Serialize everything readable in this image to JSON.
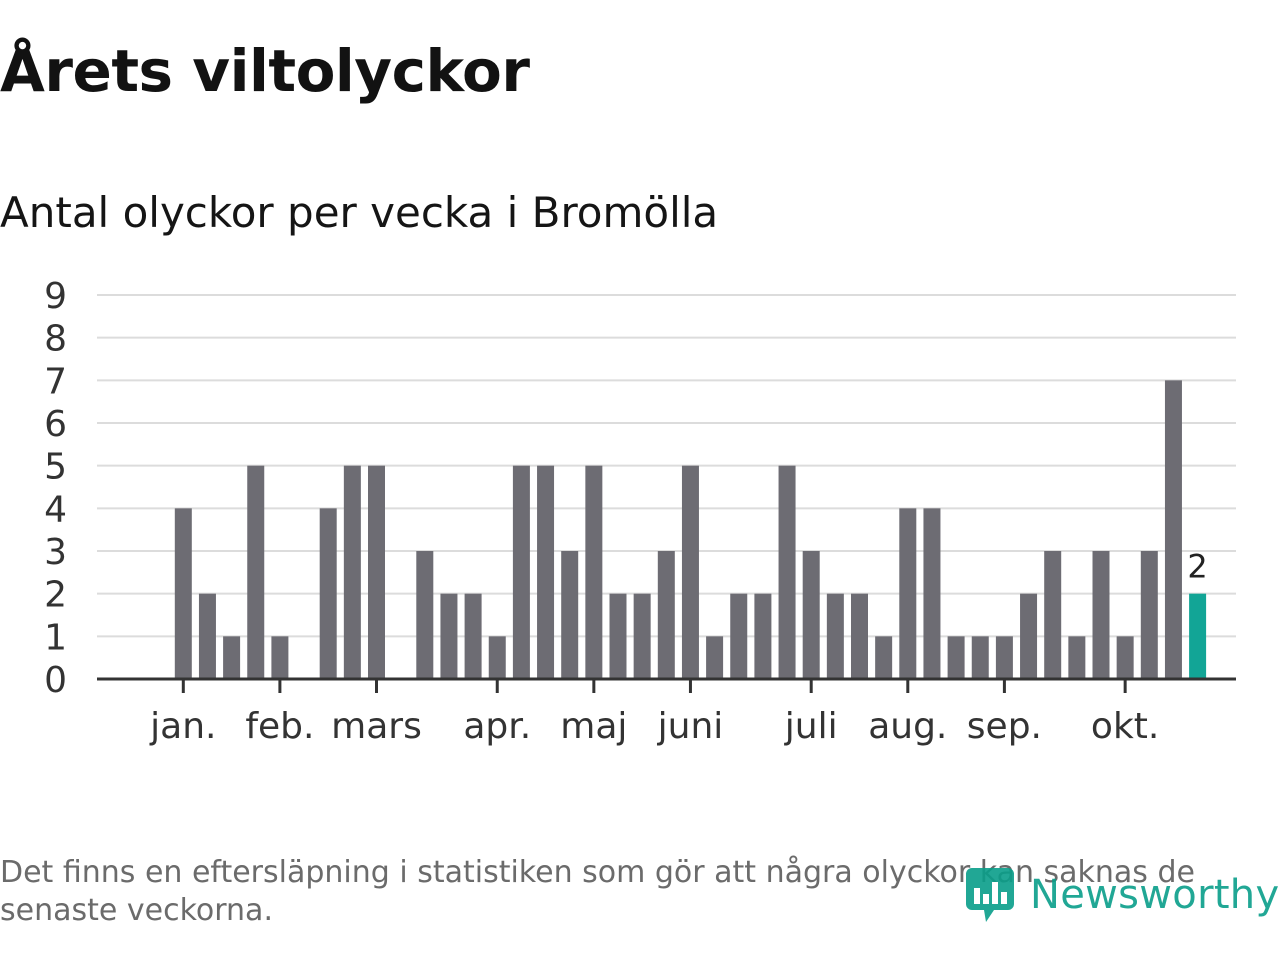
{
  "header": {
    "title": "Årets viltolyckor",
    "subtitle": "Antal olyckor per vecka i Bromölla"
  },
  "footer": {
    "note": "Det finns en eftersläpning i statistiken som gör att några olyckor kan saknas de senaste veckorna.",
    "brand": "Newsworthy"
  },
  "colors": {
    "bar": "#6d6c73",
    "highlight": "#12a596",
    "grid": "#dcdcdc",
    "axis": "#333333",
    "tick_text": "#333333",
    "brand": "#0a9e8a"
  },
  "chart_data": {
    "type": "bar",
    "title": "Antal olyckor per vecka i Bromölla",
    "xlabel": "",
    "ylabel": "",
    "ylim": [
      0,
      9
    ],
    "yticks": [
      0,
      1,
      2,
      3,
      4,
      5,
      6,
      7,
      8,
      9
    ],
    "grid": true,
    "weeks": [
      1,
      2,
      3,
      4,
      5,
      6,
      7,
      8,
      9,
      10,
      11,
      12,
      13,
      14,
      15,
      16,
      17,
      18,
      19,
      20,
      21,
      22,
      23,
      24,
      25,
      26,
      27,
      28,
      29,
      30,
      31,
      32,
      33,
      34,
      35,
      36,
      37,
      38,
      39,
      40,
      41,
      42,
      43,
      44,
      45
    ],
    "values": [
      0,
      0,
      4,
      2,
      1,
      5,
      1,
      0,
      4,
      5,
      5,
      0,
      3,
      2,
      2,
      1,
      5,
      5,
      3,
      5,
      2,
      2,
      3,
      5,
      1,
      2,
      2,
      5,
      3,
      2,
      2,
      1,
      4,
      4,
      1,
      1,
      1,
      2,
      3,
      1,
      3,
      1,
      3,
      7,
      2
    ],
    "highlight_week": 45,
    "highlight_label": "2",
    "month_labels": [
      {
        "label": "jan.",
        "week": 3
      },
      {
        "label": "feb.",
        "week": 7
      },
      {
        "label": "mars",
        "week": 11
      },
      {
        "label": "apr.",
        "week": 16
      },
      {
        "label": "maj",
        "week": 20
      },
      {
        "label": "juni",
        "week": 24
      },
      {
        "label": "juli",
        "week": 29
      },
      {
        "label": "aug.",
        "week": 33
      },
      {
        "label": "sep.",
        "week": 37
      },
      {
        "label": "okt.",
        "week": 42
      }
    ]
  }
}
